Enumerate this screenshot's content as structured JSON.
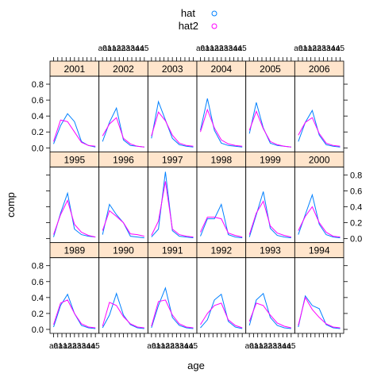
{
  "chart_data": {
    "type": "line",
    "xlabel": "age",
    "ylabel": "comp",
    "x_ticks": [
      "a0",
      "a1",
      "a2",
      "a3",
      "a4",
      "a5",
      "a1",
      "a2",
      "a3",
      "a4",
      "a5"
    ],
    "x_tick_labels_printed": [
      "a0",
      "a1",
      "a1",
      "a2",
      "a2",
      "a3",
      "a3",
      "a4",
      "a4",
      "a5"
    ],
    "ylim": [
      -0.05,
      0.9
    ],
    "y_ticks": [
      "0.0",
      "0.2",
      "0.4",
      "0.6",
      "0.8"
    ],
    "y_tick_values": [
      0.0,
      0.2,
      0.4,
      0.6,
      0.8
    ],
    "legend": {
      "placement": "top",
      "entries": [
        {
          "name": "hat",
          "color": "#0080ff"
        },
        {
          "name": "hat2",
          "color": "#ff00ff"
        }
      ]
    },
    "layout": {
      "columns": 6,
      "rows": 3
    },
    "panels": [
      {
        "label": "2001",
        "hat": [
          0.05,
          0.28,
          0.43,
          0.33,
          0.08,
          0.03,
          0.01
        ],
        "hat2": [
          0.08,
          0.35,
          0.33,
          0.2,
          0.07,
          0.03,
          0.02
        ]
      },
      {
        "label": "2002",
        "hat": [
          0.08,
          0.32,
          0.5,
          0.1,
          0.03,
          0.02,
          0.01
        ],
        "hat2": [
          0.15,
          0.3,
          0.38,
          0.12,
          0.05,
          0.02,
          0.01
        ]
      },
      {
        "label": "2003",
        "hat": [
          0.12,
          0.58,
          0.35,
          0.12,
          0.04,
          0.02,
          0.01
        ],
        "hat2": [
          0.15,
          0.45,
          0.34,
          0.16,
          0.06,
          0.03,
          0.02
        ]
      },
      {
        "label": "2004",
        "hat": [
          0.22,
          0.62,
          0.22,
          0.06,
          0.03,
          0.02,
          0.01
        ],
        "hat2": [
          0.2,
          0.48,
          0.25,
          0.1,
          0.05,
          0.03,
          0.02
        ]
      },
      {
        "label": "2005",
        "hat": [
          0.18,
          0.57,
          0.25,
          0.06,
          0.03,
          0.02,
          0.01
        ],
        "hat2": [
          0.22,
          0.46,
          0.24,
          0.08,
          0.04,
          0.02,
          0.01
        ]
      },
      {
        "label": "2006",
        "hat": [
          0.08,
          0.32,
          0.47,
          0.16,
          0.04,
          0.02,
          0.01
        ],
        "hat2": [
          0.16,
          0.32,
          0.38,
          0.18,
          0.06,
          0.03,
          0.02
        ]
      },
      {
        "label": "1995",
        "hat": [
          0.02,
          0.32,
          0.57,
          0.12,
          0.05,
          0.03,
          0.02
        ],
        "hat2": [
          0.05,
          0.3,
          0.48,
          0.18,
          0.08,
          0.04,
          0.02
        ]
      },
      {
        "label": "1996",
        "hat": [
          0.05,
          0.43,
          0.3,
          0.2,
          0.03,
          0.02,
          0.01
        ],
        "hat2": [
          0.1,
          0.35,
          0.28,
          0.2,
          0.06,
          0.05,
          0.03
        ]
      },
      {
        "label": "1997",
        "hat": [
          0.02,
          0.12,
          0.84,
          0.1,
          0.03,
          0.02,
          0.01
        ],
        "hat2": [
          0.04,
          0.22,
          0.72,
          0.12,
          0.05,
          0.03,
          0.02
        ]
      },
      {
        "label": "1998",
        "hat": [
          0.03,
          0.25,
          0.25,
          0.43,
          0.05,
          0.02,
          0.01
        ],
        "hat2": [
          0.08,
          0.27,
          0.27,
          0.25,
          0.07,
          0.04,
          0.02
        ]
      },
      {
        "label": "1999",
        "hat": [
          0.02,
          0.3,
          0.59,
          0.13,
          0.04,
          0.02,
          0.01
        ],
        "hat2": [
          0.05,
          0.32,
          0.47,
          0.16,
          0.07,
          0.04,
          0.02
        ]
      },
      {
        "label": "2000",
        "hat": [
          0.05,
          0.3,
          0.55,
          0.18,
          0.05,
          0.02,
          0.01
        ],
        "hat2": [
          0.1,
          0.28,
          0.4,
          0.2,
          0.08,
          0.03,
          0.02
        ]
      },
      {
        "label": "1989",
        "hat": [
          0.03,
          0.3,
          0.44,
          0.2,
          0.05,
          0.02,
          0.01
        ],
        "hat2": [
          0.06,
          0.33,
          0.37,
          0.2,
          0.07,
          0.03,
          0.02
        ]
      },
      {
        "label": "1990",
        "hat": [
          0.02,
          0.18,
          0.45,
          0.18,
          0.06,
          0.02,
          0.01
        ],
        "hat2": [
          0.04,
          0.34,
          0.3,
          0.16,
          0.07,
          0.03,
          0.02
        ]
      },
      {
        "label": "1991",
        "hat": [
          0.02,
          0.3,
          0.52,
          0.15,
          0.05,
          0.02,
          0.01
        ],
        "hat2": [
          0.04,
          0.35,
          0.37,
          0.18,
          0.07,
          0.03,
          0.02
        ]
      },
      {
        "label": "1992",
        "hat": [
          0.02,
          0.12,
          0.37,
          0.44,
          0.1,
          0.03,
          0.01
        ],
        "hat2": [
          0.06,
          0.2,
          0.3,
          0.33,
          0.12,
          0.05,
          0.02
        ]
      },
      {
        "label": "1993",
        "hat": [
          0.05,
          0.37,
          0.45,
          0.15,
          0.05,
          0.02,
          0.01
        ],
        "hat2": [
          0.1,
          0.33,
          0.3,
          0.18,
          0.08,
          0.04,
          0.02
        ]
      },
      {
        "label": "1994",
        "hat": [
          0.03,
          0.42,
          0.3,
          0.26,
          0.06,
          0.02,
          0.01
        ],
        "hat2": [
          0.05,
          0.4,
          0.25,
          0.15,
          0.07,
          0.03,
          0.02
        ]
      }
    ]
  }
}
